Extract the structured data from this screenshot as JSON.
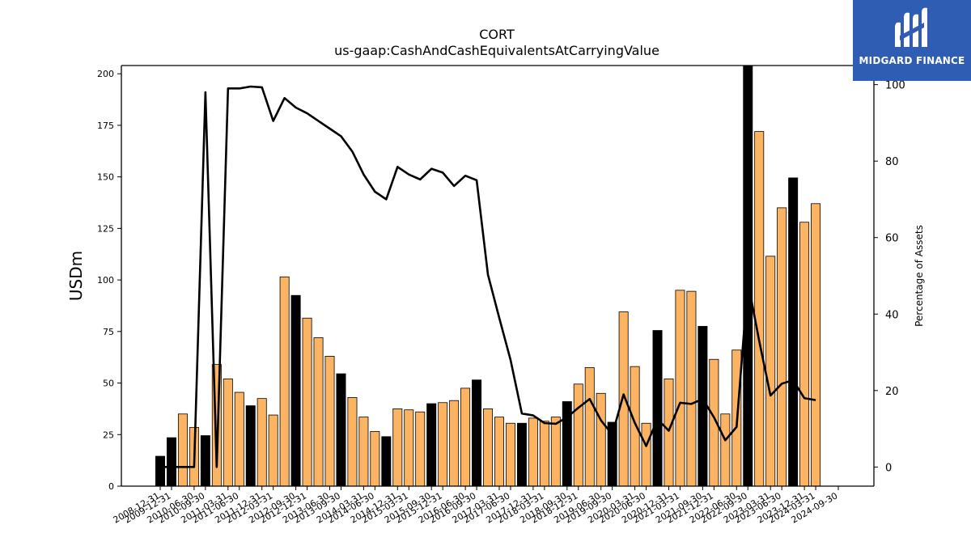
{
  "logo": {
    "text": "MIDGARD FINANCE",
    "background": "#2e5db3"
  },
  "chart_data": {
    "type": "bar",
    "title": "CORT",
    "subtitle": "us-gaap:CashAndCashEquivalentsAtCarryingValue",
    "ylabel": "USDm",
    "y2label": "Percentage of Assets",
    "ylim": [
      0,
      204
    ],
    "y2lim": [
      -5,
      105
    ],
    "yticks": [
      0,
      25,
      50,
      75,
      100,
      125,
      150,
      175,
      200
    ],
    "y2ticks": [
      0,
      20,
      40,
      60,
      80,
      100
    ],
    "colors": {
      "annual_bar": "#000000",
      "quarter_bar": "#fdb462",
      "line": "#000000"
    },
    "categories": [
      "2008-12-31",
      "2009-12-31",
      "2010-03-31",
      "2010-06-30",
      "2010-09-30",
      "2010-12-31",
      "2011-03-31",
      "2011-06-30",
      "2011-09-30",
      "2011-12-31",
      "2012-03-31",
      "2012-06-30",
      "2012-09-30",
      "2012-12-31",
      "2013-03-31",
      "2013-06-30",
      "2013-09-30",
      "2013-12-31",
      "2014-03-31",
      "2014-06-30",
      "2014-09-30",
      "2014-12-31",
      "2015-03-31",
      "2015-06-30",
      "2015-09-30",
      "2015-12-31",
      "2016-03-31",
      "2016-06-30",
      "2016-09-30",
      "2016-12-31",
      "2017-03-31",
      "2017-06-30",
      "2017-09-30",
      "2017-12-31",
      "2018-03-31",
      "2018-06-30",
      "2018-09-30",
      "2018-12-31",
      "2019-03-31",
      "2019-06-30",
      "2019-09-30",
      "2019-12-31",
      "2020-03-31",
      "2020-06-30",
      "2020-09-30",
      "2020-12-31",
      "2021-03-31",
      "2021-06-30",
      "2021-09-30",
      "2021-12-31",
      "2022-03-31",
      "2022-06-30",
      "2022-09-30",
      "2022-12-31",
      "2023-03-31",
      "2023-06-30",
      "2023-09-30",
      "2023-12-31",
      "2024-03-31",
      "2024-06-30",
      "2024-09-30"
    ],
    "x_tick_labels": [
      "2008-12-31",
      "2009-12-31",
      "2010-06-30",
      "2010-09-30",
      "2011-03-31",
      "2011-06-30",
      "2011-12-31",
      "2012-03-31",
      "2012-09-30",
      "2012-12-31",
      "2013-06-30",
      "2013-09-30",
      "2014-03-31",
      "2014-06-30",
      "2014-12-31",
      "2015-03-31",
      "2015-09-30",
      "2015-12-31",
      "2016-06-30",
      "2016-09-30",
      "2017-03-31",
      "2017-06-30",
      "2017-12-31",
      "2018-03-31",
      "2018-09-30",
      "2018-12-31",
      "2019-06-30",
      "2019-09-30",
      "2020-03-31",
      "2020-06-30",
      "2020-12-31",
      "2021-03-31",
      "2021-09-30",
      "2021-12-31",
      "2022-06-30",
      "2022-09-30",
      "2023-03-31",
      "2023-06-30",
      "2023-12-31",
      "2024-03-31",
      "2024-09-30"
    ],
    "series": [
      {
        "type": "bar",
        "values": [
          14.5,
          23.5,
          35,
          28.5,
          24.5,
          59,
          52,
          45.5,
          39,
          42.5,
          34.5,
          101.5,
          92.5,
          81.5,
          72,
          63,
          54.5,
          43,
          33.5,
          26.5,
          24,
          37.5,
          37,
          36,
          40,
          40.5,
          41.5,
          47.5,
          51.5,
          37.5,
          33.5,
          30.5,
          30.5,
          33,
          31.5,
          33.5,
          41,
          49.5,
          57.5,
          45,
          31,
          84.5,
          58,
          30.5,
          75.5,
          52,
          95,
          94.5,
          77.5,
          61.5,
          35,
          66,
          204,
          172,
          111.5,
          135,
          149.5,
          128,
          137,
          null,
          null
        ],
        "annual": [
          true,
          true,
          false,
          false,
          true,
          false,
          false,
          false,
          true,
          false,
          false,
          false,
          true,
          false,
          false,
          false,
          true,
          false,
          false,
          false,
          true,
          false,
          false,
          false,
          true,
          false,
          false,
          false,
          true,
          false,
          false,
          false,
          true,
          false,
          false,
          false,
          true,
          false,
          false,
          false,
          true,
          false,
          false,
          false,
          true,
          false,
          false,
          false,
          true,
          false,
          false,
          false,
          true,
          false,
          false,
          false,
          true,
          false,
          false,
          false,
          false
        ]
      },
      {
        "type": "line",
        "axis": "right",
        "values": [
          0,
          0,
          0,
          0,
          98,
          0,
          99,
          99,
          99.5,
          99.3,
          90.5,
          96.5,
          94,
          92.5,
          90.5,
          88.5,
          86.5,
          82.5,
          76.5,
          72,
          70,
          78.5,
          76.5,
          75.2,
          78,
          77,
          73.5,
          76.2,
          75,
          50.3,
          39,
          28,
          14,
          13.5,
          11.5,
          11.3,
          13,
          15.5,
          17.8,
          12.2,
          8.5,
          19,
          11.5,
          5.5,
          12.5,
          9.5,
          16.8,
          16.5,
          17.8,
          13,
          7,
          10.5,
          48.5,
          33,
          18.7,
          21.8,
          22.7,
          18,
          17.5,
          null,
          null
        ]
      }
    ]
  }
}
